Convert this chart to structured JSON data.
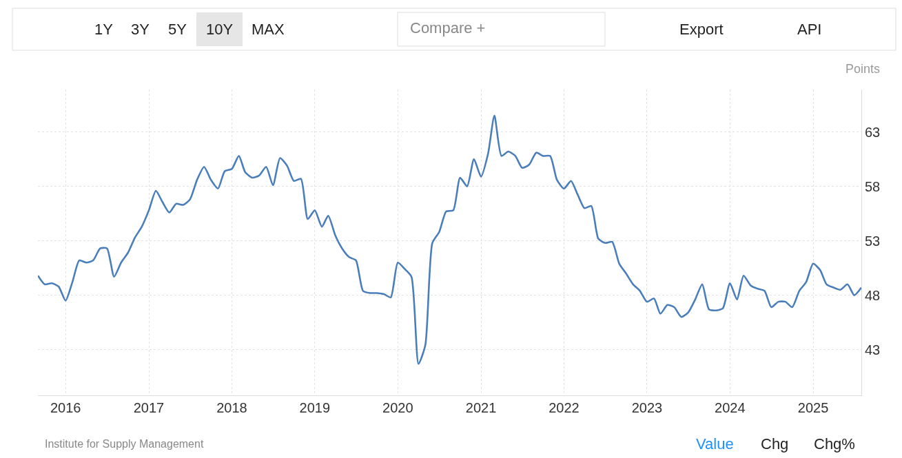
{
  "chart_data": {
    "type": "line",
    "ylabel": "Points",
    "x": [
      "2015-09",
      "2015-10",
      "2015-11",
      "2015-12",
      "2016-01",
      "2016-02",
      "2016-03",
      "2016-04",
      "2016-05",
      "2016-06",
      "2016-07",
      "2016-08",
      "2016-09",
      "2016-10",
      "2016-11",
      "2016-12",
      "2017-01",
      "2017-02",
      "2017-03",
      "2017-04",
      "2017-05",
      "2017-06",
      "2017-07",
      "2017-08",
      "2017-09",
      "2017-10",
      "2017-11",
      "2017-12",
      "2018-01",
      "2018-02",
      "2018-03",
      "2018-04",
      "2018-05",
      "2018-06",
      "2018-07",
      "2018-08",
      "2018-09",
      "2018-10",
      "2018-11",
      "2018-12",
      "2019-01",
      "2019-02",
      "2019-03",
      "2019-04",
      "2019-05",
      "2019-06",
      "2019-07",
      "2019-08",
      "2019-09",
      "2019-10",
      "2019-11",
      "2019-12",
      "2020-01",
      "2020-02",
      "2020-03",
      "2020-04",
      "2020-05",
      "2020-06",
      "2020-07",
      "2020-08",
      "2020-09",
      "2020-10",
      "2020-11",
      "2020-12",
      "2021-01",
      "2021-02",
      "2021-03",
      "2021-04",
      "2021-05",
      "2021-06",
      "2021-07",
      "2021-08",
      "2021-09",
      "2021-10",
      "2021-11",
      "2021-12",
      "2022-01",
      "2022-02",
      "2022-03",
      "2022-04",
      "2022-05",
      "2022-06",
      "2022-07",
      "2022-08",
      "2022-09",
      "2022-10",
      "2022-11",
      "2022-12",
      "2023-01",
      "2023-02",
      "2023-03",
      "2023-04",
      "2023-05",
      "2023-06",
      "2023-07",
      "2023-08",
      "2023-09",
      "2023-10",
      "2023-11",
      "2023-12",
      "2024-01",
      "2024-02",
      "2024-03",
      "2024-04",
      "2024-05",
      "2024-06",
      "2024-07",
      "2024-08",
      "2024-09",
      "2024-10",
      "2024-11",
      "2024-12",
      "2025-01",
      "2025-02",
      "2025-03",
      "2025-04",
      "2025-05",
      "2025-06",
      "2025-07",
      "2025-08"
    ],
    "series": [
      {
        "color": "#4a7ebb",
        "values": [
          49.8,
          49.0,
          49.1,
          48.8,
          47.5,
          49.3,
          51.2,
          51.0,
          51.2,
          52.3,
          52.3,
          49.7,
          51.0,
          51.9,
          53.3,
          54.3,
          55.8,
          57.6,
          56.6,
          55.6,
          56.4,
          56.3,
          56.8,
          58.6,
          59.8,
          58.6,
          57.8,
          59.4,
          59.6,
          60.8,
          59.3,
          58.8,
          59.0,
          59.8,
          58.1,
          60.6,
          59.9,
          58.5,
          58.7,
          55.0,
          55.8,
          54.3,
          55.3,
          53.5,
          52.3,
          51.5,
          51.2,
          48.4,
          48.2,
          48.2,
          48.1,
          47.8,
          51.0,
          50.4,
          49.7,
          41.7,
          43.4,
          52.8,
          53.8,
          55.7,
          55.8,
          58.8,
          58.0,
          60.5,
          58.9,
          61.0,
          64.5,
          60.8,
          61.2,
          60.8,
          59.7,
          60.0,
          61.1,
          60.8,
          60.8,
          58.6,
          57.8,
          58.5,
          57.3,
          56.0,
          56.2,
          53.2,
          52.8,
          52.9,
          50.9,
          50.0,
          49.0,
          48.4,
          47.4,
          47.7,
          46.3,
          47.1,
          46.9,
          46.0,
          46.4,
          47.6,
          49.0,
          46.7,
          46.6,
          46.8,
          49.1,
          47.6,
          49.8,
          48.9,
          48.6,
          48.4,
          46.9,
          47.4,
          47.4,
          46.9,
          48.4,
          49.2,
          50.9,
          50.3,
          49.0,
          48.7,
          48.5,
          49.0,
          48.0,
          48.7
        ]
      }
    ],
    "xlim": [
      "2015-09",
      "2025-08"
    ],
    "xticks": [
      "2016",
      "2017",
      "2018",
      "2019",
      "2020",
      "2021",
      "2022",
      "2023",
      "2024",
      "2025"
    ],
    "ylim": [
      38.8,
      66.9
    ],
    "yticks": [
      43,
      48,
      53,
      58,
      63
    ],
    "grid": true,
    "marker": "none",
    "line_style": "solid",
    "annotations": [
      "1Y",
      "3Y",
      "5Y",
      "10Y",
      "MAX",
      "Compare +",
      "Export",
      "API",
      "Institute for Supply Management",
      "Value",
      "Chg",
      "Chg%"
    ]
  }
}
